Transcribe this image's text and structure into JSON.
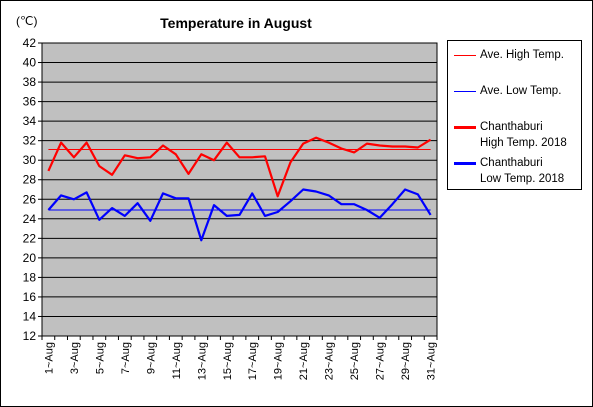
{
  "chart_data": {
    "type": "line",
    "title": "Temperature in August",
    "unit_label": "(℃)",
    "ylim": [
      12,
      42
    ],
    "yticks": [
      12,
      14,
      16,
      18,
      20,
      22,
      24,
      26,
      28,
      30,
      32,
      34,
      36,
      38,
      40,
      42
    ],
    "categories": [
      "1~Aug",
      "2~Aug",
      "3~Aug",
      "4~Aug",
      "5~Aug",
      "6~Aug",
      "7~Aug",
      "8~Aug",
      "9~Aug",
      "10~Aug",
      "11~Aug",
      "12~Aug",
      "13~Aug",
      "14~Aug",
      "15~Aug",
      "16~Aug",
      "17~Aug",
      "18~Aug",
      "19~Aug",
      "20~Aug",
      "21~Aug",
      "22~Aug",
      "23~Aug",
      "24~Aug",
      "25~Aug",
      "26~Aug",
      "27~Aug",
      "28~Aug",
      "29~Aug",
      "30~Aug",
      "31~Aug"
    ],
    "xtick_labels": [
      "1~Aug",
      "3~Aug",
      "5~Aug",
      "7~Aug",
      "9~Aug",
      "11~Aug",
      "13~Aug",
      "15~Aug",
      "17~Aug",
      "19~Aug",
      "21~Aug",
      "23~Aug",
      "25~Aug",
      "27~Aug",
      "29~Aug",
      "31~Aug"
    ],
    "grid": true,
    "legend_position": "right",
    "series": [
      {
        "name": "Ave. High Temp.",
        "color": "#ff0000",
        "style": "thin",
        "values": [
          31.1,
          31.1,
          31.1,
          31.1,
          31.1,
          31.1,
          31.1,
          31.1,
          31.1,
          31.1,
          31.1,
          31.1,
          31.1,
          31.1,
          31.1,
          31.1,
          31.1,
          31.1,
          31.1,
          31.1,
          31.1,
          31.1,
          31.1,
          31.1,
          31.1,
          31.1,
          31.1,
          31.1,
          31.1,
          31.1,
          31.1
        ]
      },
      {
        "name": "Ave. Low Temp.",
        "color": "#0000ff",
        "style": "thin",
        "values": [
          24.9,
          24.9,
          24.9,
          24.9,
          24.9,
          24.9,
          24.9,
          24.9,
          24.9,
          24.9,
          24.9,
          24.9,
          24.9,
          24.9,
          24.9,
          24.9,
          24.9,
          24.9,
          24.9,
          24.9,
          24.9,
          24.9,
          24.9,
          24.9,
          24.9,
          24.9,
          24.9,
          24.9,
          24.9,
          24.9,
          24.9
        ]
      },
      {
        "name": "Chanthaburi High Temp. 2018",
        "legend_lines": [
          "Chanthaburi",
          "High Temp. 2018"
        ],
        "color": "#ff0000",
        "style": "thick",
        "values": [
          28.9,
          31.8,
          30.3,
          31.8,
          29.4,
          28.5,
          30.5,
          30.2,
          30.3,
          31.5,
          30.6,
          28.6,
          30.6,
          30.0,
          31.8,
          30.3,
          30.3,
          30.4,
          26.3,
          29.8,
          31.7,
          32.3,
          31.8,
          31.2,
          30.8,
          31.7,
          31.5,
          31.4,
          31.4,
          31.3,
          32.1
        ]
      },
      {
        "name": "Chanthaburi Low Temp. 2018",
        "legend_lines": [
          "Chanthaburi",
          "Low Temp. 2018"
        ],
        "color": "#0000ff",
        "style": "thick",
        "values": [
          24.9,
          26.4,
          26.0,
          26.7,
          23.9,
          25.1,
          24.3,
          25.6,
          23.8,
          26.6,
          26.1,
          26.1,
          21.8,
          25.4,
          24.3,
          24.4,
          26.6,
          24.3,
          24.7,
          25.8,
          27.0,
          26.8,
          26.4,
          25.5,
          25.5,
          24.9,
          24.1,
          25.5,
          27.0,
          26.5,
          24.4
        ]
      }
    ]
  }
}
